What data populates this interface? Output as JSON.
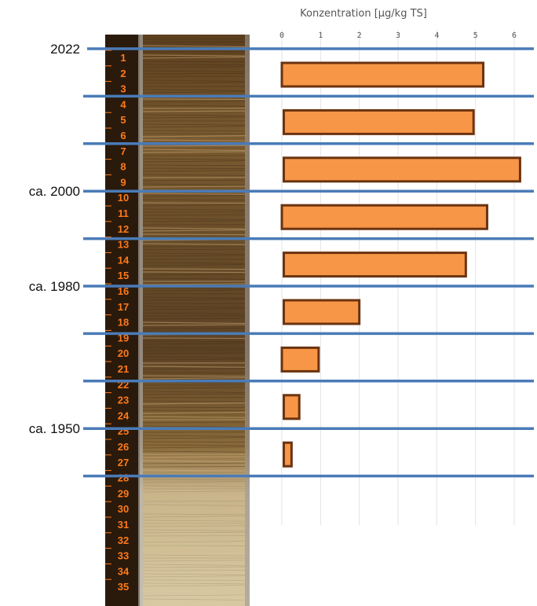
{
  "chart_data": {
    "type": "bar",
    "orientation": "horizontal",
    "title": "",
    "xlabel": "Konzentration [µg/kg TS]",
    "ylabel": "",
    "x_axis_position": "top",
    "xlim": [
      0,
      6.3
    ],
    "xticks": [
      0,
      1,
      2,
      3,
      4,
      5,
      6
    ],
    "grid": true,
    "bars": [
      {
        "start": 0.0,
        "value": 5.2
      },
      {
        "start": 0.05,
        "value": 4.95
      },
      {
        "start": 0.05,
        "value": 6.15
      },
      {
        "start": 0.0,
        "value": 5.3
      },
      {
        "start": 0.05,
        "value": 4.75
      },
      {
        "start": 0.05,
        "value": 2.0
      },
      {
        "start": 0.0,
        "value": 0.95
      },
      {
        "start": 0.05,
        "value": 0.45
      },
      {
        "start": 0.05,
        "value": 0.25
      }
    ],
    "bar_color": "#f79646",
    "bar_edge_color": "#6b3310",
    "separator_color": "#4a7bb7",
    "year_labels": [
      {
        "label": "2022",
        "boundary": 0
      },
      {
        "label": "ca. 2000",
        "boundary": 3
      },
      {
        "label": "ca. 1980",
        "boundary": 5
      },
      {
        "label": "ca. 1950",
        "boundary": 8
      }
    ]
  },
  "sediment_core": {
    "depth_labels": [
      "1",
      "2",
      "3",
      "4",
      "5",
      "6",
      "7",
      "8",
      "9",
      "10",
      "11",
      "12",
      "13",
      "14",
      "15",
      "16",
      "17",
      "18",
      "19",
      "20",
      "21",
      "22",
      "23",
      "24",
      "25",
      "26",
      "27",
      "28",
      "29",
      "30",
      "31",
      "32",
      "33",
      "34",
      "35"
    ],
    "scale_color": "#ff7a1a"
  }
}
